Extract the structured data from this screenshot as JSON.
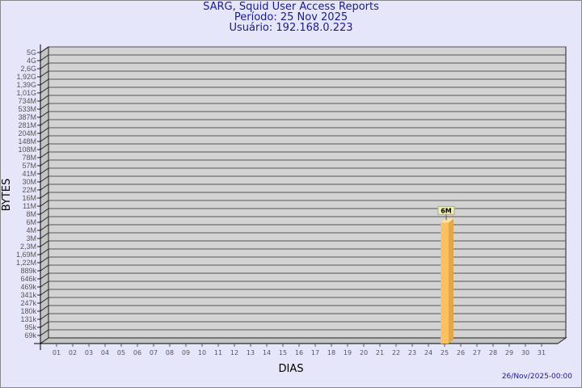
{
  "title": "SARG, Squid User Access Reports",
  "period": "Período: 25 Nov 2025",
  "user": "Usuário: 192.168.0.223",
  "timestamp": "26/Nov/2025-00:00",
  "colors": {
    "background": "#e6e6fa",
    "plot": "#d3d3d3",
    "bar": "#fbc060",
    "title": "#1a1a8c"
  },
  "chart_data": {
    "type": "bar",
    "style": "3d",
    "xlabel": "DIAS",
    "ylabel": "BYTES",
    "categories": [
      "01",
      "02",
      "03",
      "04",
      "05",
      "06",
      "07",
      "08",
      "09",
      "10",
      "11",
      "12",
      "13",
      "14",
      "15",
      "16",
      "17",
      "18",
      "19",
      "20",
      "21",
      "22",
      "23",
      "24",
      "25",
      "26",
      "27",
      "28",
      "29",
      "30",
      "31"
    ],
    "values": [
      0,
      0,
      0,
      0,
      0,
      0,
      0,
      0,
      0,
      0,
      0,
      0,
      0,
      0,
      0,
      0,
      0,
      0,
      0,
      0,
      0,
      0,
      0,
      0,
      6000000,
      0,
      0,
      0,
      0,
      0,
      0
    ],
    "data_labels": {
      "25": "6M"
    },
    "y_scale": "log",
    "y_ticks": [
      "5G",
      "4G",
      "2,6G",
      "1,92G",
      "1,39G",
      "1,01G",
      "734M",
      "533M",
      "387M",
      "281M",
      "204M",
      "148M",
      "108M",
      "78M",
      "57M",
      "41M",
      "30M",
      "22M",
      "16M",
      "11M",
      "8M",
      "6M",
      "4M",
      "3M",
      "2,3M",
      "1,69M",
      "1,22M",
      "889k",
      "646k",
      "469k",
      "341k",
      "247k",
      "180k",
      "131k",
      "95k",
      "69k"
    ],
    "grid": true,
    "legend": "none"
  }
}
